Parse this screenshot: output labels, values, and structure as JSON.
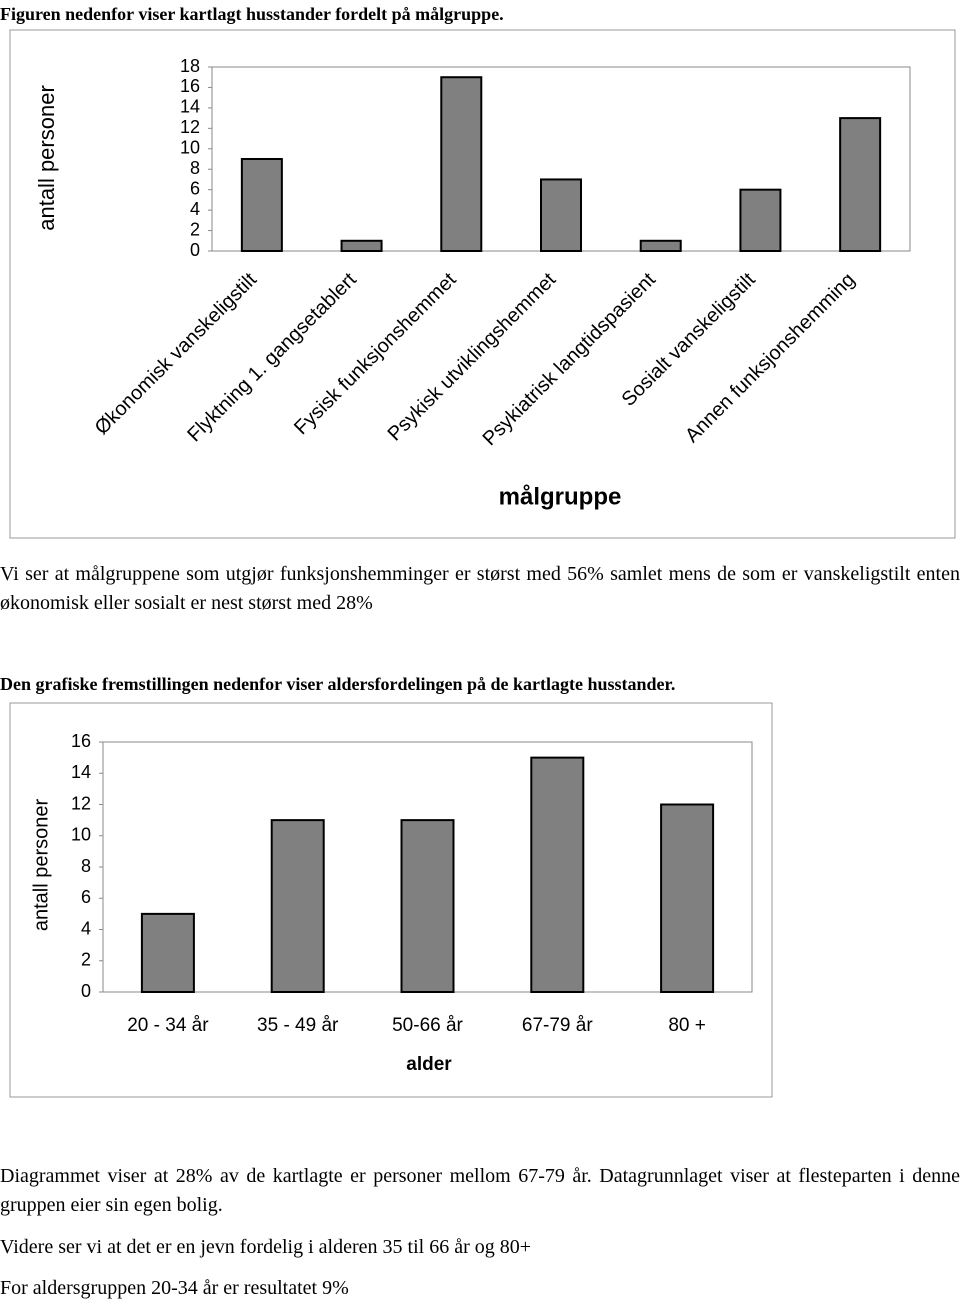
{
  "heading": "Figuren nedenfor viser kartlagt husstander fordelt på målgruppe.",
  "chart_data": [
    {
      "type": "bar",
      "ylabel": "antall personer",
      "xlabel": "målgruppe",
      "categories": [
        "Økonomisk vanskeligstilt",
        "Flyktning 1. gangsetablert",
        "Fysisk funksjonshemmet",
        "Psykisk utviklingshemmet",
        "Psykiatrisk langtidspasient",
        "Sosialt vanskeligstilt",
        "Annen funksjonshemming"
      ],
      "values": [
        9,
        1,
        17,
        7,
        1,
        6,
        13
      ],
      "color": "#808080",
      "ylim": [
        0,
        18
      ],
      "yticks": [
        0,
        2,
        4,
        6,
        8,
        10,
        12,
        14,
        16,
        18
      ],
      "grid": false
    },
    {
      "type": "bar",
      "ylabel": "antall personer",
      "xlabel": "alder",
      "categories": [
        "20 - 34 år",
        "35 - 49 år",
        "50-66 år",
        "67-79 år",
        "80 +"
      ],
      "values": [
        5,
        11,
        11,
        15,
        12
      ],
      "color": "#808080",
      "ylim": [
        0,
        16
      ],
      "yticks": [
        0,
        2,
        4,
        6,
        8,
        10,
        12,
        14,
        16
      ],
      "grid": false
    }
  ],
  "paragraph1": "Vi ser at målgruppene som utgjør funksjonshemminger er størst med 56% samlet mens de som er vanskeligstilt enten økonomisk eller sosialt er nest størst med 28%",
  "heading2": "Den grafiske fremstillingen nedenfor viser aldersfordelingen på de kartlagte husstander.",
  "paragraph2": "Diagrammet viser at 28% av de kartlagte er personer mellom 67-79 år. Datagrunnlaget viser at flesteparten i denne gruppen eier sin egen bolig.",
  "paragraph3": "Videre ser vi at det er en jevn fordelig i alderen 35 til 66 år og 80+",
  "paragraph4": "For aldersgruppen 20-34 år er resultatet 9%"
}
